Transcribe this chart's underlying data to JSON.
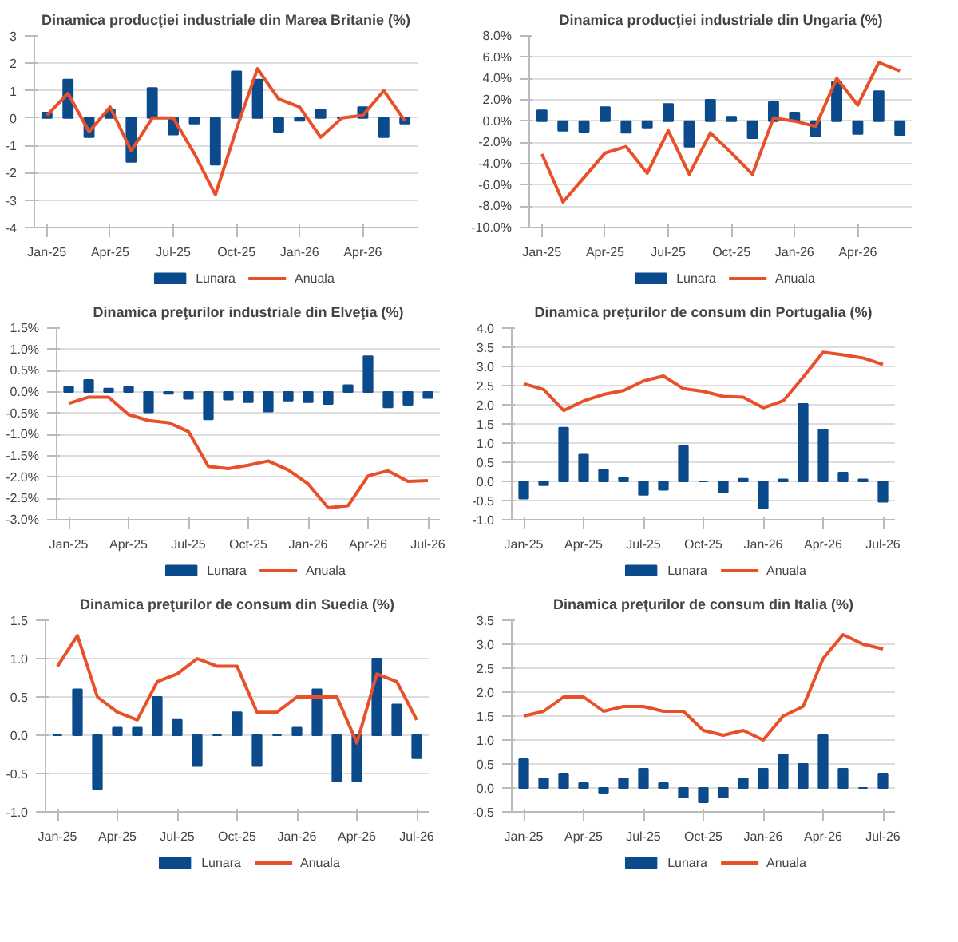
{
  "chart_data": [
    {
      "type": "bar",
      "title": "Dinamica producţiei industriale din Marea Britanie (%)",
      "categories": [
        "Jan-25",
        null,
        null,
        "Apr-25",
        null,
        null,
        "Jul-25",
        null,
        null,
        "Oct-25",
        null,
        null,
        "Jan-26",
        null,
        null,
        "Apr-26",
        null,
        null
      ],
      "ylim": [
        -4,
        3
      ],
      "yticks": [
        -4,
        -3,
        -2,
        -1,
        0,
        1,
        2,
        3
      ],
      "grid": "y",
      "legend": "bottom",
      "series": [
        {
          "name": "Lunara",
          "color": "#0b4a8b",
          "values": [
            0.2,
            1.4,
            -0.7,
            0.3,
            -1.6,
            1.1,
            -0.6,
            -0.2,
            -1.7,
            1.7,
            1.4,
            -0.5,
            -0.1,
            0.3,
            0,
            0.4,
            -0.7,
            -0.2
          ]
        },
        {
          "name": "Anuala",
          "type": "line",
          "color": "#e8502a",
          "values": [
            0.1,
            0.9,
            -0.5,
            0.4,
            -1.2,
            0,
            0,
            -1.3,
            -2.8,
            -0.4,
            1.8,
            0.7,
            0.4,
            -0.7,
            0,
            0.1,
            1.0,
            -0.1
          ]
        }
      ]
    },
    {
      "type": "bar",
      "title": "Dinamica producţiei industriale din Ungaria (%)",
      "categories": [
        "Jan-25",
        null,
        null,
        "Apr-25",
        null,
        null,
        "Jul-25",
        null,
        null,
        "Oct-25",
        null,
        null,
        "Jan-26",
        null,
        null,
        "Apr-26",
        null,
        null
      ],
      "ylim": [
        -10,
        8
      ],
      "yticks": [
        {
          "value": -10,
          "label": "-10.0%"
        },
        {
          "value": -8,
          "label": "-8.0%"
        },
        {
          "value": -6,
          "label": "-6.0%"
        },
        {
          "value": -4,
          "label": "-4.0%"
        },
        {
          "value": -2,
          "label": "-2.0%"
        },
        {
          "value": 0,
          "label": "0.0%"
        },
        {
          "value": 2,
          "label": "2.0%"
        },
        {
          "value": 4,
          "label": "4.0%"
        },
        {
          "value": 6,
          "label": "6.0%"
        },
        {
          "value": 8,
          "label": "8.0%"
        }
      ],
      "grid": "y",
      "legend": "bottom",
      "series": [
        {
          "name": "Lunara",
          "color": "#0b4a8b",
          "values": [
            1.0,
            -0.9,
            -1.0,
            1.3,
            -1.1,
            -0.6,
            1.6,
            -2.4,
            2.0,
            0.4,
            -1.6,
            1.8,
            0.8,
            -1.4,
            3.7,
            -1.2,
            2.8,
            -1.3
          ]
        },
        {
          "name": "Anuala",
          "type": "line",
          "color": "#e8502a",
          "values": [
            -3.1,
            -7.6,
            -5.3,
            -3.0,
            -2.4,
            -4.9,
            -0.9,
            -5.0,
            -1.1,
            -3.0,
            -5.0,
            0.3,
            0.0,
            -0.5,
            4.0,
            1.5,
            5.5,
            4.7
          ]
        }
      ]
    },
    {
      "type": "bar",
      "title": "Dinamica preţurilor industriale din Elveţia (%)",
      "categories": [
        "Jan-25",
        null,
        null,
        "Apr-25",
        null,
        null,
        "Jul-25",
        null,
        null,
        "Oct-25",
        null,
        null,
        "Jan-26",
        null,
        null,
        "Apr-26",
        null,
        null,
        "Jul-26"
      ],
      "ylim": [
        -3,
        1.5
      ],
      "yticks": [
        {
          "value": -3,
          "label": "-3.0%"
        },
        {
          "value": -2.5,
          "label": "-2.5%"
        },
        {
          "value": -2,
          "label": "-2.0%"
        },
        {
          "value": -1.5,
          "label": "-1.5%"
        },
        {
          "value": -1,
          "label": "-1.0%"
        },
        {
          "value": -0.5,
          "label": "-0.5%"
        },
        {
          "value": 0,
          "label": "0.0%"
        },
        {
          "value": 0.5,
          "label": "0.5%"
        },
        {
          "value": 1,
          "label": "1.0%"
        },
        {
          "value": 1.5,
          "label": "1.5%"
        }
      ],
      "grid": "y",
      "legend": "bottom",
      "series": [
        {
          "name": "Lunara",
          "color": "#0b4a8b",
          "values": [
            0.12,
            0.28,
            0.08,
            0.12,
            -0.48,
            -0.04,
            -0.16,
            -0.64,
            -0.18,
            -0.24,
            -0.46,
            -0.2,
            -0.24,
            -0.28,
            0.16,
            0.84,
            -0.36,
            -0.3,
            -0.14
          ]
        },
        {
          "name": "Anuala",
          "type": "line",
          "color": "#e8502a",
          "values": [
            -0.27,
            -0.12,
            -0.12,
            -0.53,
            -0.67,
            -0.72,
            -0.93,
            -1.75,
            -1.8,
            -1.72,
            -1.62,
            -1.83,
            -2.16,
            -2.72,
            -2.67,
            -1.97,
            -1.85,
            -2.1,
            -2.08
          ]
        }
      ]
    },
    {
      "type": "bar",
      "title": "Dinamica preţurilor de consum din Portugalia (%)",
      "categories": [
        "Jan-25",
        null,
        null,
        "Apr-25",
        null,
        null,
        "Jul-25",
        null,
        null,
        "Oct-25",
        null,
        null,
        "Jan-26",
        null,
        null,
        "Apr-26",
        null,
        null,
        "Jul-26"
      ],
      "ylim": [
        -1,
        4
      ],
      "yticks": [
        {
          "value": -1,
          "label": "-1.0"
        },
        {
          "value": -0.5,
          "label": "-0.5"
        },
        {
          "value": 0,
          "label": "0.0"
        },
        {
          "value": 0.5,
          "label": "0.5"
        },
        {
          "value": 1,
          "label": "1.0"
        },
        {
          "value": 1.5,
          "label": "1.5"
        },
        {
          "value": 2,
          "label": "2.0"
        },
        {
          "value": 2.5,
          "label": "2.5"
        },
        {
          "value": 3,
          "label": "3.0"
        },
        {
          "value": 3.5,
          "label": "3.5"
        },
        {
          "value": 4,
          "label": "4.0"
        }
      ],
      "grid": "y",
      "legend": "bottom",
      "series": [
        {
          "name": "Lunara",
          "color": "#0b4a8b",
          "values": [
            -0.45,
            -0.1,
            1.4,
            0.7,
            0.3,
            0.1,
            -0.35,
            -0.22,
            0.92,
            0,
            -0.28,
            0.07,
            -0.7,
            0.05,
            2.02,
            1.35,
            0.23,
            0.05,
            -0.53
          ]
        },
        {
          "name": "Anuala",
          "type": "line",
          "color": "#e8502a",
          "values": [
            2.55,
            2.4,
            1.85,
            2.1,
            2.27,
            2.37,
            2.62,
            2.75,
            2.42,
            2.35,
            2.22,
            2.2,
            1.92,
            2.1,
            2.72,
            3.37,
            3.3,
            3.22,
            3.05
          ]
        }
      ]
    },
    {
      "type": "bar",
      "title": "Dinamica preţurilor de consum din Suedia (%)",
      "categories": [
        "Jan-25",
        null,
        null,
        "Apr-25",
        null,
        null,
        "Jul-25",
        null,
        null,
        "Oct-25",
        null,
        null,
        "Jan-26",
        null,
        null,
        "Apr-26",
        null,
        null,
        "Jul-26"
      ],
      "ylim": [
        -1,
        1.5
      ],
      "yticks": [
        {
          "value": -1,
          "label": "-1.0"
        },
        {
          "value": -0.5,
          "label": "-0.5"
        },
        {
          "value": 0,
          "label": "0.0"
        },
        {
          "value": 0.5,
          "label": "0.5"
        },
        {
          "value": 1,
          "label": "1.0"
        },
        {
          "value": 1.5,
          "label": "1.5"
        }
      ],
      "grid": "y",
      "legend": "bottom",
      "series": [
        {
          "name": "Lunara",
          "color": "#0b4a8b",
          "values": [
            0,
            0.6,
            -0.7,
            0.1,
            0.1,
            0.5,
            0.2,
            -0.4,
            0,
            0.3,
            -0.4,
            0,
            0.1,
            0.6,
            -0.6,
            -0.6,
            1.0,
            0.4,
            -0.3
          ]
        },
        {
          "name": "Anuala",
          "type": "line",
          "color": "#e8502a",
          "values": [
            0.9,
            1.3,
            0.5,
            0.3,
            0.2,
            0.7,
            0.8,
            1.0,
            0.9,
            0.9,
            0.3,
            0.3,
            0.5,
            0.5,
            0.5,
            -0.1,
            0.8,
            0.7,
            0.2
          ]
        }
      ]
    },
    {
      "type": "bar",
      "title": "Dinamica preţurilor de consum din Italia (%)",
      "categories": [
        "Jan-25",
        null,
        null,
        "Apr-25",
        null,
        null,
        "Jul-25",
        null,
        null,
        "Oct-25",
        null,
        null,
        "Jan-26",
        null,
        null,
        "Apr-26",
        null,
        null,
        "Jul-26"
      ],
      "ylim": [
        -0.5,
        3.5
      ],
      "yticks": [
        {
          "value": -0.5,
          "label": "-0.5"
        },
        {
          "value": 0,
          "label": "0.0"
        },
        {
          "value": 0.5,
          "label": "0.5"
        },
        {
          "value": 1,
          "label": "1.0"
        },
        {
          "value": 1.5,
          "label": "1.5"
        },
        {
          "value": 2,
          "label": "2.0"
        },
        {
          "value": 2.5,
          "label": "2.5"
        },
        {
          "value": 3,
          "label": "3.0"
        },
        {
          "value": 3.5,
          "label": "3.5"
        }
      ],
      "grid": "y",
      "legend": "bottom",
      "series": [
        {
          "name": "Lunara",
          "color": "#0b4a8b",
          "values": [
            0.6,
            0.2,
            0.3,
            0.1,
            -0.1,
            0.2,
            0.4,
            0.1,
            -0.2,
            -0.3,
            -0.2,
            0.2,
            0.4,
            0.7,
            0.5,
            1.1,
            0.4,
            0,
            0.3
          ]
        },
        {
          "name": "Anuala",
          "type": "line",
          "color": "#e8502a",
          "values": [
            1.5,
            1.6,
            1.9,
            1.9,
            1.6,
            1.7,
            1.7,
            1.6,
            1.6,
            1.2,
            1.1,
            1.2,
            1.0,
            1.5,
            1.7,
            2.7,
            3.2,
            3.0,
            2.9
          ]
        }
      ]
    }
  ]
}
